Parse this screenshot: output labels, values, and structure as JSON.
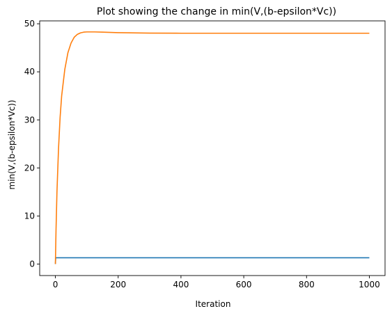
{
  "chart_data": {
    "type": "line",
    "title": "Plot showing the change in min(V,(b-epsilon*Vc))",
    "xlabel": "Iteration",
    "ylabel": "min(V,(b-epsilon*Vc))",
    "xlim": [
      -50,
      1050
    ],
    "ylim": [
      -2.4,
      50.6
    ],
    "xticks": [
      0,
      200,
      400,
      600,
      800,
      1000
    ],
    "yticks": [
      0,
      10,
      20,
      30,
      40,
      50
    ],
    "grid": false,
    "legend": "none",
    "series": [
      {
        "color": "#1f77b4",
        "x": [
          0,
          1,
          2,
          5,
          10,
          50,
          100,
          200,
          400,
          600,
          800,
          1000
        ],
        "y": [
          0,
          1.3,
          1.3,
          1.3,
          1.3,
          1.3,
          1.3,
          1.3,
          1.3,
          1.3,
          1.3,
          1.3
        ]
      },
      {
        "color": "#ff7f0e",
        "x": [
          0,
          2,
          5,
          10,
          15,
          20,
          30,
          40,
          50,
          60,
          70,
          80,
          90,
          100,
          110,
          125,
          150,
          200,
          300,
          400,
          600,
          800,
          1000
        ],
        "y": [
          0,
          7,
          15,
          24,
          30.5,
          35,
          40.5,
          44,
          46,
          47.2,
          47.8,
          48.1,
          48.25,
          48.3,
          48.3,
          48.3,
          48.25,
          48.15,
          48.05,
          48.03,
          48.03,
          48.03,
          48.03
        ]
      }
    ]
  }
}
